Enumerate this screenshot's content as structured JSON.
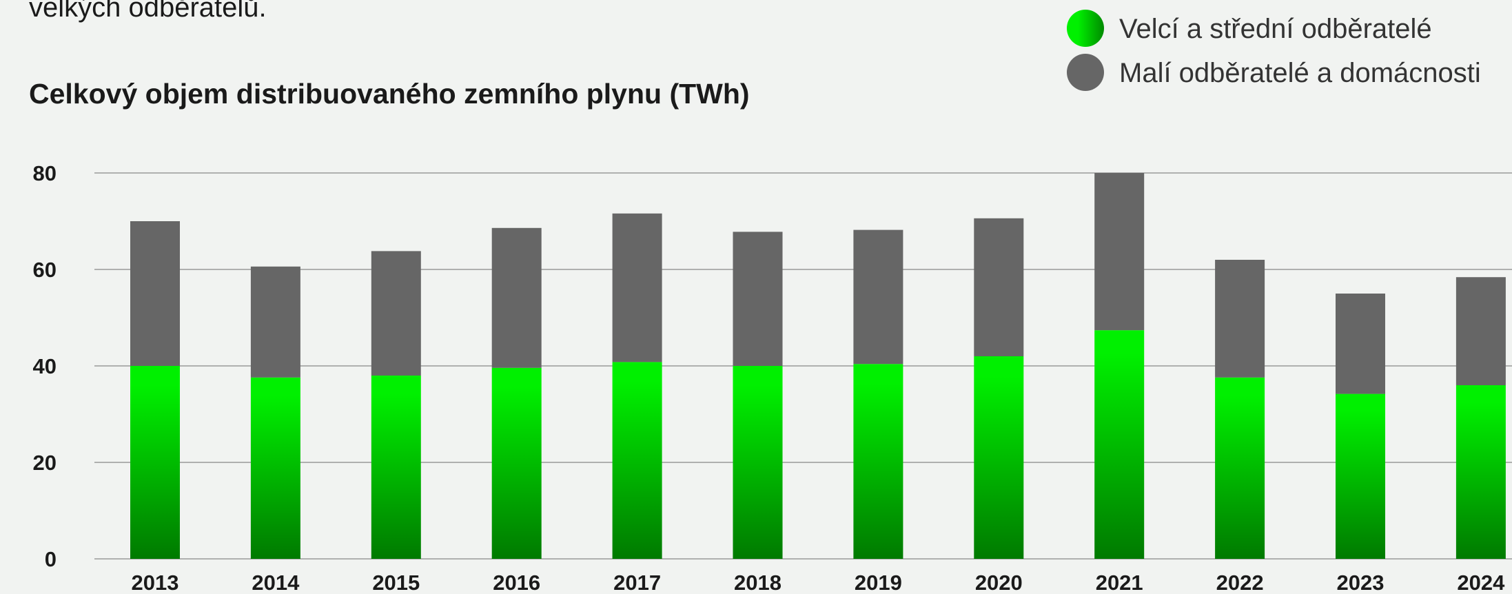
{
  "chart_data": {
    "type": "stacked-bar",
    "intro_text": "velkých odběratelů.",
    "title": "Celkový objem distribuovaného zemního plynu (TWh)",
    "categories": [
      "2013",
      "2014",
      "2015",
      "2016",
      "2017",
      "2018",
      "2019",
      "2020",
      "2021",
      "2022",
      "2023",
      "2024"
    ],
    "series": [
      {
        "name": "Velcí a střední odběratelé",
        "color": "#00f000",
        "values": [
          40,
          37.6,
          38,
          39.6,
          40.8,
          40,
          40.4,
          42,
          47.4,
          37.6,
          34.2,
          36
        ]
      },
      {
        "name": "Malí odběratelé a domácnosti",
        "color": "#666666",
        "values": [
          30,
          23,
          25.8,
          29,
          30.8,
          27.8,
          27.8,
          28.6,
          32.6,
          24.4,
          20.8,
          22.4
        ]
      }
    ],
    "ylim": [
      0,
      80
    ],
    "yticks": [
      0,
      20,
      40,
      60,
      80
    ],
    "grid": true,
    "legend": "top-right"
  }
}
